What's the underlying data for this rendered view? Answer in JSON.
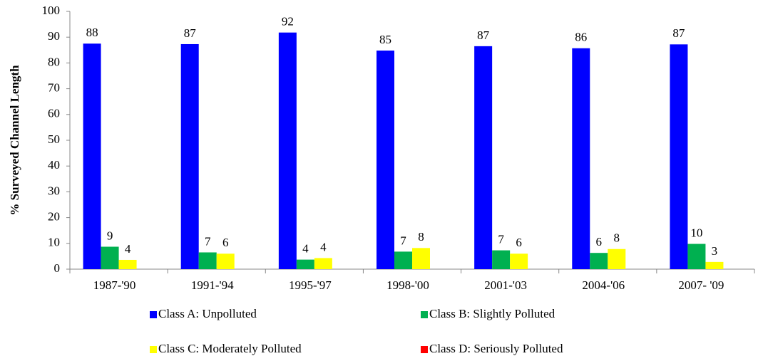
{
  "chart_data": {
    "type": "bar",
    "y_label": "% Surveyed Channel  Length",
    "categories": [
      "1987-'90",
      "1991-'94",
      "1995-'97",
      "1998-'00",
      "2001-'03",
      "2004-'06",
      "2007- '09"
    ],
    "series": [
      {
        "name": "Class A: Unpolluted",
        "color": "#0000ff",
        "values": [
          87.5,
          87.3,
          91.8,
          84.8,
          86.5,
          85.7,
          87.2
        ],
        "value_labels": [
          "88",
          "87",
          "92",
          "85",
          "87",
          "86",
          "87"
        ]
      },
      {
        "name": "Class B: Slightly Polluted",
        "color": "#00b050",
        "values": [
          8.7,
          6.5,
          3.7,
          6.8,
          7.3,
          6.3,
          9.8
        ],
        "value_labels": [
          "9",
          "7",
          "4",
          "7",
          "7",
          "6",
          "10"
        ]
      },
      {
        "name": "Class C: Moderately Polluted",
        "color": "#ffff00",
        "values": [
          3.6,
          6.0,
          4.3,
          8.2,
          6.0,
          7.8,
          2.8
        ],
        "value_labels": [
          "4",
          "6",
          "4",
          "8",
          "6",
          "8",
          "3"
        ]
      },
      {
        "name": "Class D: Seriously Polluted",
        "color": "#ff0000",
        "values": [
          0,
          0,
          0,
          0,
          0,
          0,
          0
        ]
      }
    ],
    "ylim": [
      0,
      100
    ],
    "yticks": [
      0,
      10,
      20,
      30,
      40,
      50,
      60,
      70,
      80,
      90,
      100
    ]
  }
}
